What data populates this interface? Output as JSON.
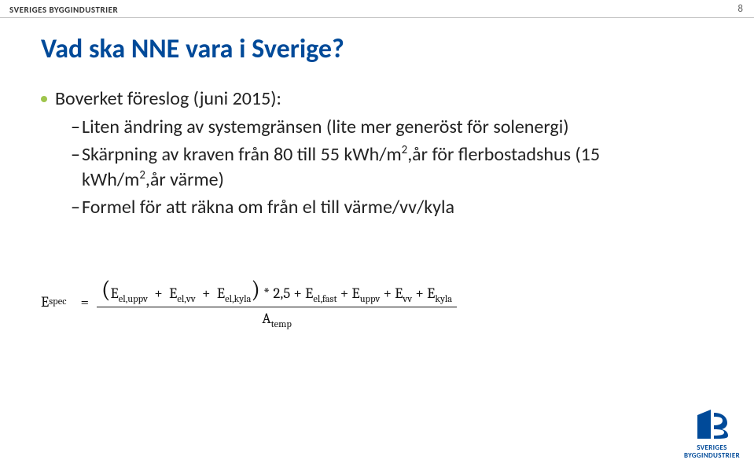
{
  "colors": {
    "accent": "#004a99",
    "bullet": "#9fc54d",
    "text": "#222222",
    "header": "#333333",
    "divider": "#bfbfbf"
  },
  "header": {
    "label": "SVERIGES BYGGINDUSTRIER",
    "page_number": "8"
  },
  "title": "Vad ska NNE vara i Sverige?",
  "bullet_lead": "Boverket föreslog (juni 2015):",
  "sub_bullets": [
    "Liten ändring av systemgränsen (lite mer generöst för solenergi)",
    "Skärpning av kraven från 80 till 55 kWh/m²,år för flerbostadshus (15 kWh/m²,år värme)",
    "Formel för att räkna om från el till värme/vv/kyla"
  ],
  "formula": {
    "lhs_var": "E",
    "lhs_sub": "spec",
    "mult_factor": "2,5",
    "terms_left_paren": [
      {
        "v": "E",
        "s": "el,uppv"
      },
      {
        "v": "E",
        "s": "el,vv"
      },
      {
        "v": "E",
        "s": "el,kyla"
      }
    ],
    "terms_right": [
      {
        "v": "E",
        "s": "el,fast"
      },
      {
        "v": "E",
        "s": "uppv"
      },
      {
        "v": "E",
        "s": "vv"
      },
      {
        "v": "E",
        "s": "kyla"
      }
    ],
    "denominator": {
      "v": "A",
      "s": "temp"
    }
  },
  "footer": {
    "brand_line1": "SVERIGES",
    "brand_line2": "BYGGINDUSTRIER",
    "logo_color": "#004a99"
  }
}
